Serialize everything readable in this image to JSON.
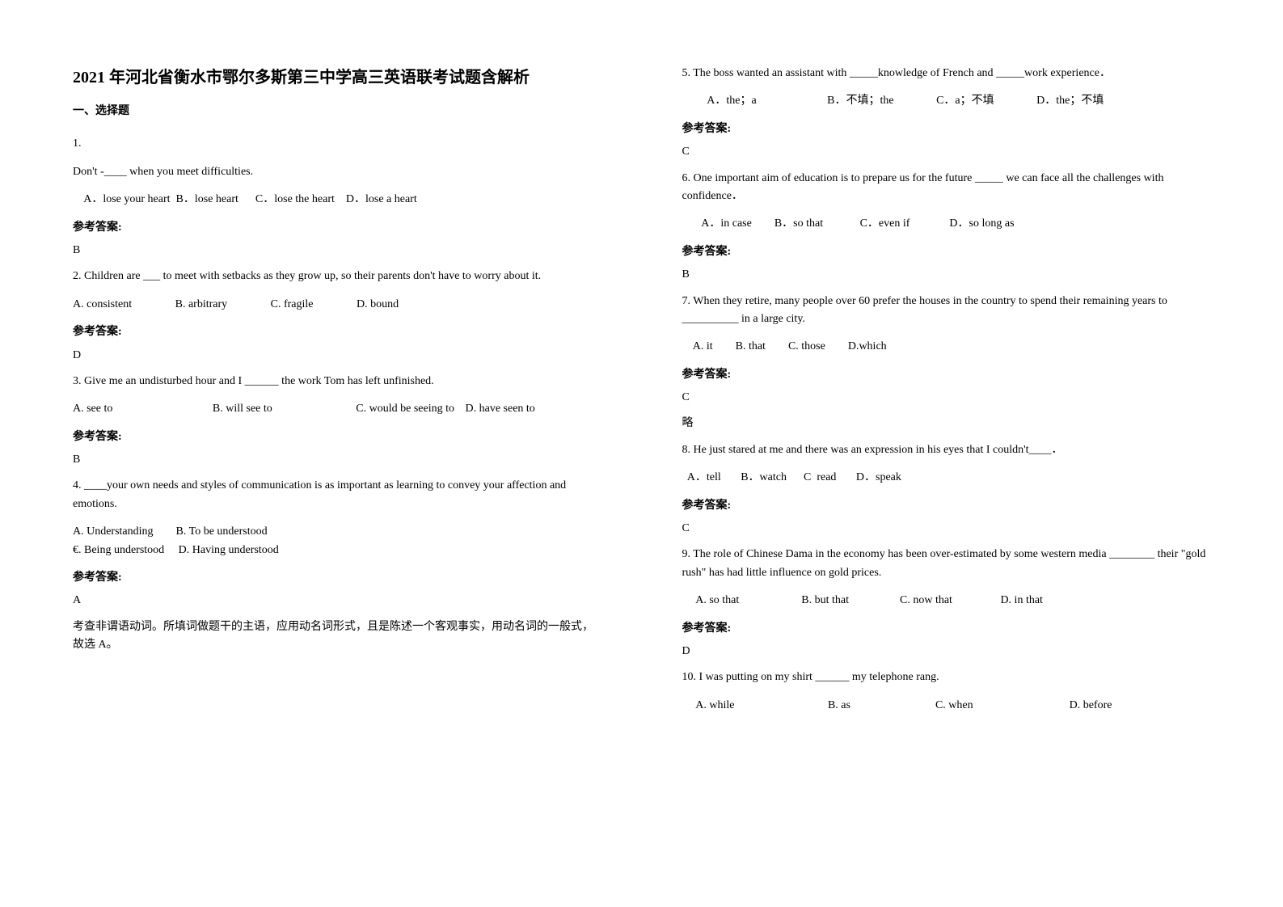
{
  "title": "2021 年河北省衡水市鄂尔多斯第三中学高三英语联考试题含解析",
  "section1": "一、选择题",
  "q1": {
    "num": "1.",
    "text": "Don't -____ when you meet difficulties.",
    "opts": "    A．lose your heart  B．lose heart      C．lose the heart    D．lose a heart",
    "ansLabel": "参考答案:",
    "ans": "B"
  },
  "q2": {
    "text": "2. Children are ___ to meet with setbacks as they grow up, so their parents don't have to worry about it.",
    "optA": "A. consistent",
    "optB": "B. arbitrary",
    "optC": "C. fragile",
    "optD": "D. bound",
    "ansLabel": "参考答案:",
    "ans": "D"
  },
  "q3": {
    "text": "3. Give me an undisturbed hour and I ______ the work Tom has left unfinished.",
    "optA": "A. see to",
    "optB": "B. will see to",
    "optC": "C. would be seeing to",
    "optD": "D. have seen to",
    "ansLabel": "参考答案:",
    "ans": "B"
  },
  "q4": {
    "text1": "4. ____your own needs and styles of communication is as important as learning to convey your affection and emotions.",
    "optsL1": "A. Understanding        B. To be understood",
    "optsL2": "€. Being understood     D. Having understood",
    "ansLabel": "参考答案:",
    "ans": "A",
    "explain": "考查非谓语动词。所填词做题干的主语，应用动名词形式，且是陈述一个客观事实，用动名词的一般式，故选 A。"
  },
  "q5": {
    "text": "5. The boss wanted an assistant with _____knowledge of French and _____work experience．",
    "optsL1": "         A．the；a                         B．不填；the               C．a；不填               D．the；不填",
    "ansLabel": "参考答案:",
    "ans": "C"
  },
  "q6": {
    "text": "6. One important aim of education is to prepare us for the future _____ we can face all the challenges with confidence．",
    "opts": "       A．in case        B．so that             C．even if              D．so long as",
    "ansLabel": "参考答案:",
    "ans": "B"
  },
  "q7": {
    "text": "7. When they retire, many people over 60 prefer the houses in the country to spend their remaining years to __________ in a large city.",
    "opts": "    A. it        B. that        C. those        D.which",
    "ansLabel": "参考答案:",
    "ans": "C",
    "note": "略"
  },
  "q8": {
    "text": "8. He just stared at me and there was an expression in his eyes that I couldn't____．",
    "opts": "  A．tell       B．watch      C  read       D．speak",
    "ansLabel": "参考答案:",
    "ans": "C"
  },
  "q9": {
    "text": "9. The role of Chinese Dama in the economy has been over-estimated by some western media ________ their \"gold rush\" has had little influence on gold prices.",
    "opts": "     A. so that                      B. but that                  C. now that                 D. in that",
    "ansLabel": "参考答案:",
    "ans": "D"
  },
  "q10": {
    "text": "10. I was putting on my shirt ______ my telephone rang.",
    "optsL1": "     A. while                                 B. as                              C. when                                  D. before"
  }
}
